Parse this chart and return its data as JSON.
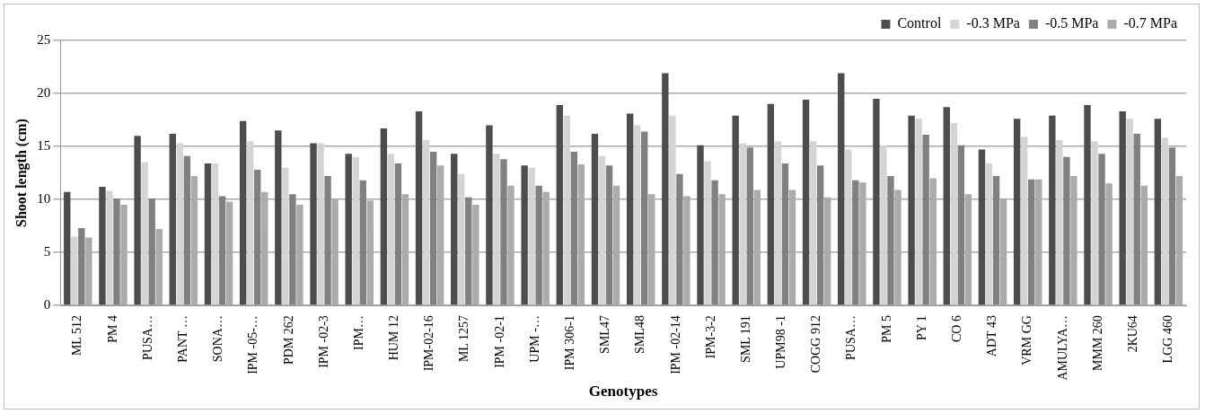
{
  "chart_data": {
    "type": "bar",
    "xlabel": "Genotypes",
    "ylabel": "Shoot length (cm)",
    "categories": [
      "ML 512",
      "PM 4",
      "PUSA…",
      "PANT …",
      "SONA…",
      "IPM -05-…",
      "PDM 262",
      "IPM -02-3",
      "IPM…",
      "HUM 12",
      "IPM-02-16",
      "ML 1257",
      "IPM -02-1",
      "UPM -…",
      "IPM 306-1",
      "SML47",
      "SML48",
      "IPM -02-14",
      "IPM-3-2",
      "SML 191",
      "UPM98 -1",
      "COGG 912",
      "PUSA…",
      "PM 5",
      "PY 1",
      "CO 6",
      "ADT 43",
      "VRM GG",
      "AMULYA…",
      "MMM 260",
      "2KU64",
      "LGG 460"
    ],
    "series": [
      {
        "name": "Control",
        "color": "#4d4d4d",
        "values": [
          10.7,
          11.2,
          16.0,
          16.2,
          13.4,
          17.4,
          16.5,
          15.3,
          14.3,
          16.7,
          18.3,
          14.3,
          17.0,
          13.2,
          18.9,
          16.2,
          18.1,
          21.9,
          15.1,
          17.9,
          19.0,
          19.4,
          21.9,
          19.5,
          17.9,
          18.7,
          14.7,
          17.6,
          17.9,
          18.9,
          18.3,
          17.6
        ]
      },
      {
        "name": "-0.3 MPa",
        "color": "#d4d4d4",
        "values": [
          6.5,
          10.8,
          13.5,
          15.3,
          13.4,
          15.5,
          13.0,
          15.3,
          14.0,
          14.3,
          15.6,
          12.4,
          14.3,
          13.0,
          17.9,
          14.1,
          17.0,
          17.9,
          13.6,
          15.3,
          15.5,
          15.5,
          14.7,
          15.1,
          17.6,
          17.2,
          13.4,
          15.9,
          15.6,
          15.5,
          17.6,
          15.8
        ]
      },
      {
        "name": "-0.5 MPa",
        "color": "#808080",
        "values": [
          7.3,
          10.1,
          10.1,
          14.1,
          10.3,
          12.8,
          10.5,
          12.2,
          11.8,
          13.4,
          14.5,
          10.2,
          13.8,
          11.3,
          14.5,
          13.2,
          16.4,
          12.4,
          11.8,
          14.9,
          13.4,
          13.2,
          11.8,
          12.2,
          16.1,
          15.1,
          12.2,
          11.9,
          14.0,
          14.3,
          16.2,
          14.9
        ]
      },
      {
        "name": "-0.7 MPa",
        "color": "#ababab",
        "values": [
          6.4,
          9.5,
          7.2,
          12.2,
          9.8,
          10.7,
          9.5,
          10.1,
          9.9,
          10.5,
          13.2,
          9.5,
          11.3,
          10.7,
          13.3,
          11.3,
          10.5,
          10.3,
          10.5,
          10.9,
          10.9,
          10.2,
          11.6,
          10.9,
          12.0,
          10.5,
          10.0,
          11.9,
          12.2,
          11.5,
          11.3,
          12.2
        ]
      }
    ],
    "ylim": [
      0,
      25
    ],
    "yticks": [
      0,
      5,
      10,
      15,
      20,
      25
    ],
    "grid": "y",
    "legend": "top right"
  }
}
